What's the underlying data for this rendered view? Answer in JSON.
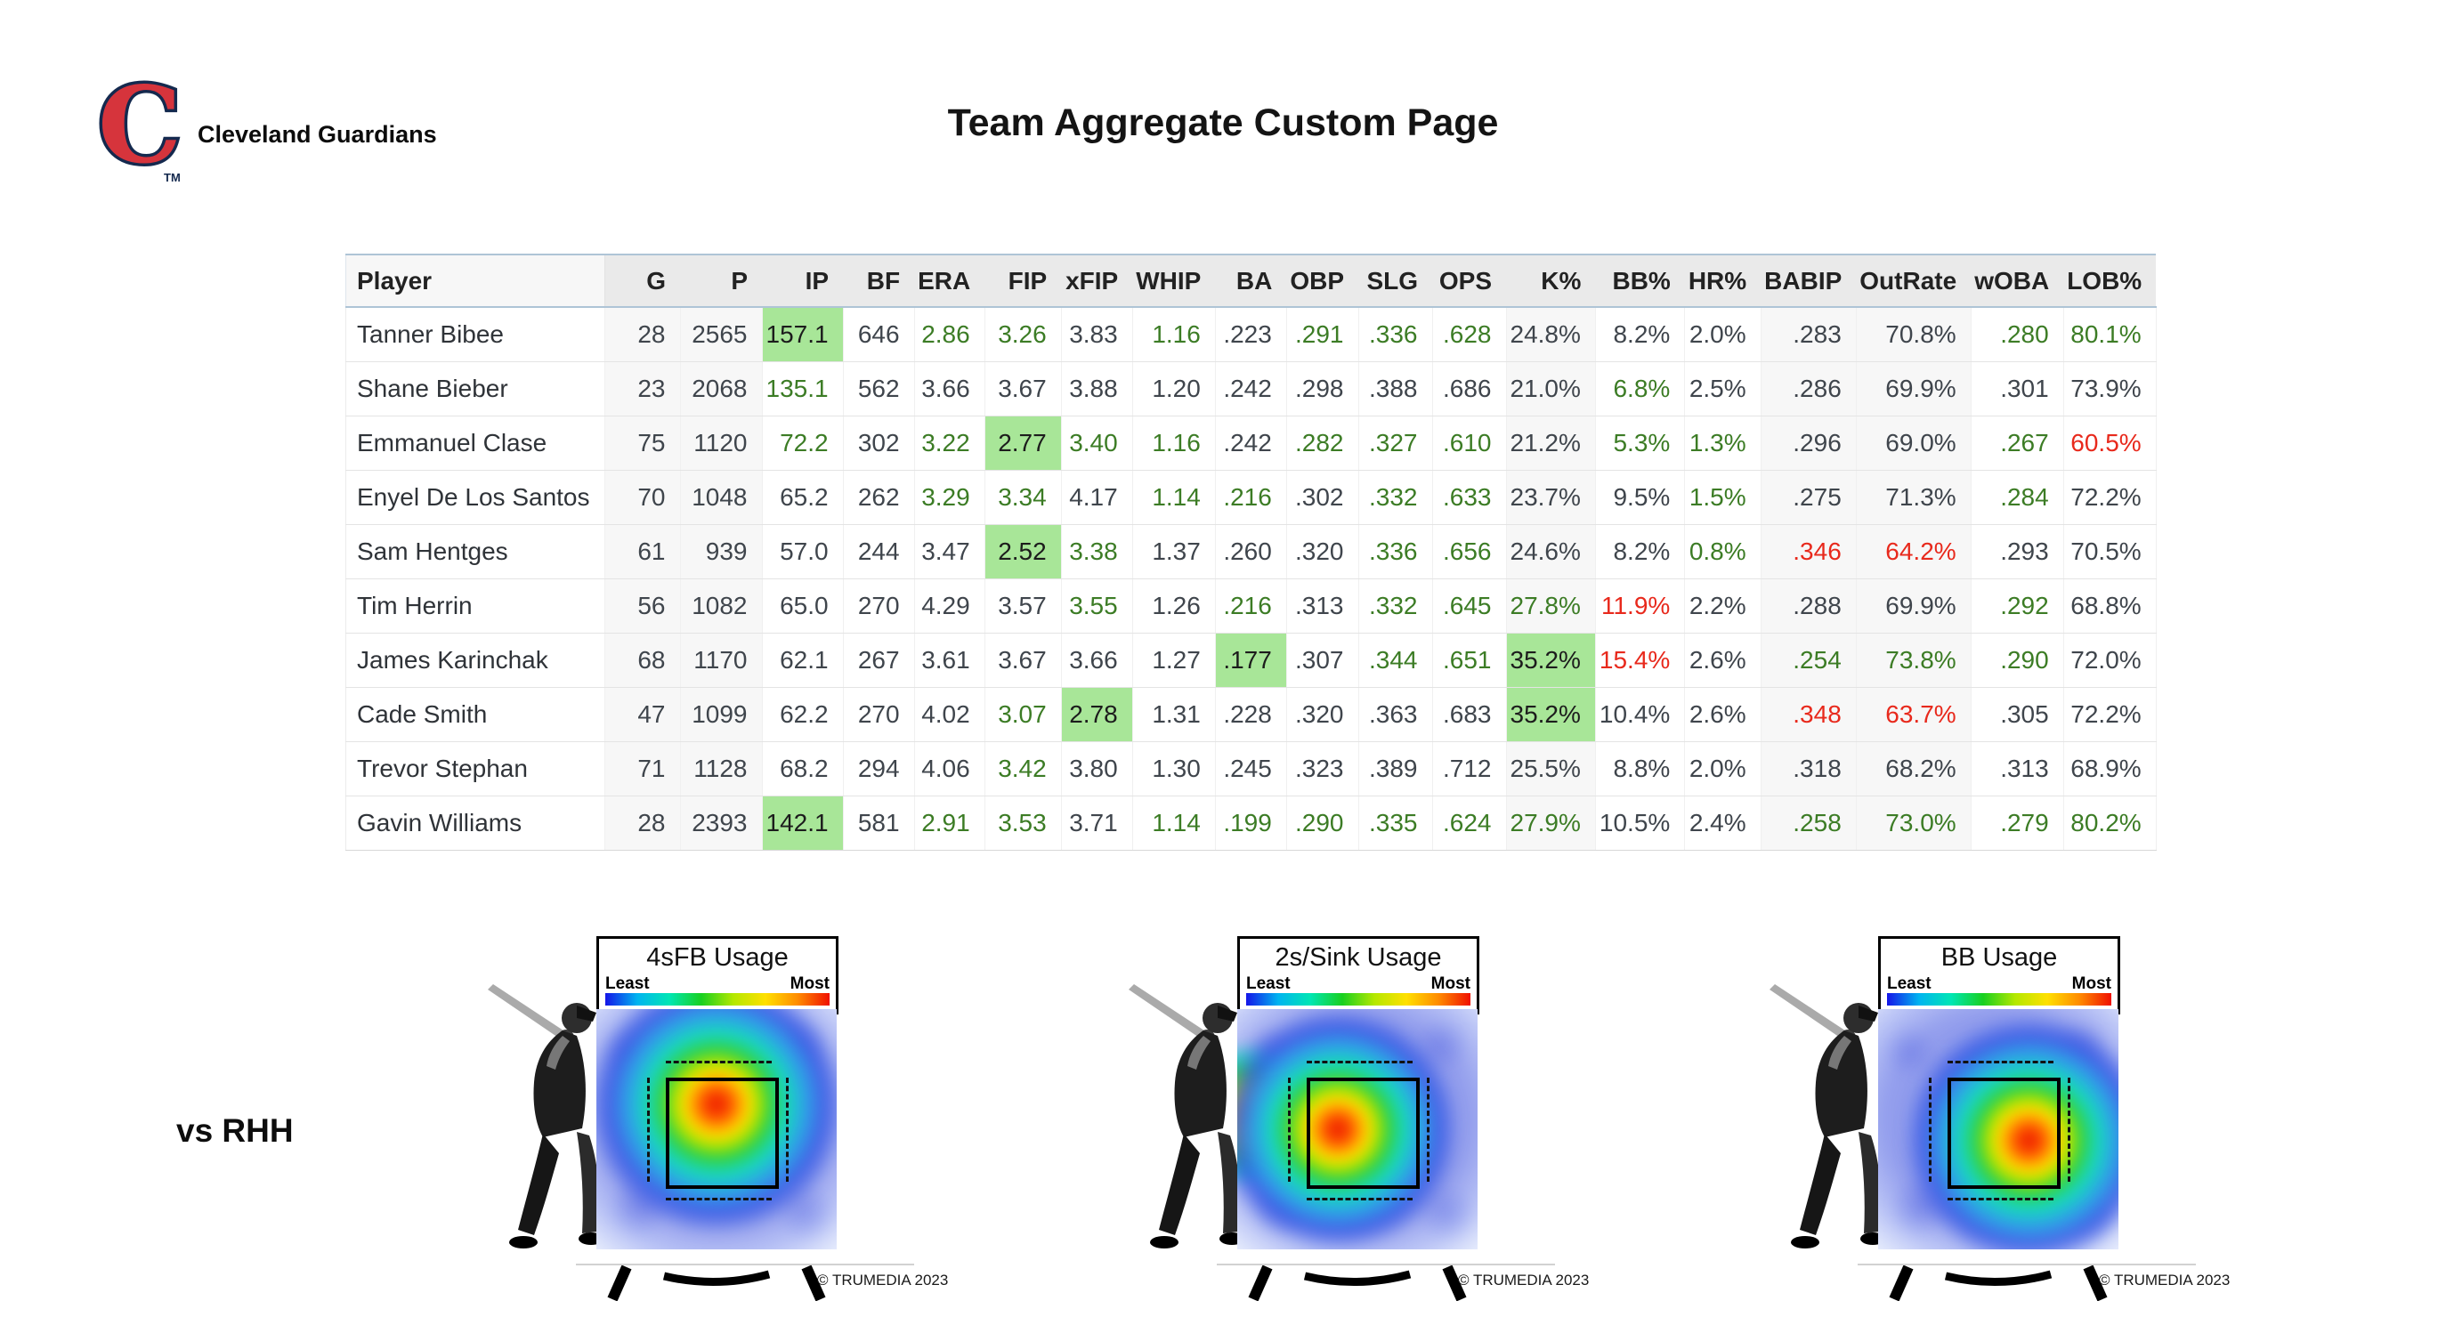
{
  "header": {
    "team_name": "Cleveland Guardians",
    "logo_letter": "C",
    "logo_tm": "TM",
    "page_title": "Team Aggregate Custom Page"
  },
  "colors": {
    "positive_text": "#3c7c25",
    "negative_text": "#e8291c",
    "highlight_bg": "#a8e698",
    "header_accent_line": "#aec4d6",
    "logo_red": "#d6343c",
    "logo_navy": "#14294e"
  },
  "table": {
    "columns": [
      "Player",
      "G",
      "P",
      "IP",
      "BF",
      "ERA",
      "FIP",
      "xFIP",
      "WHIP",
      "BA",
      "OBP",
      "SLG",
      "OPS",
      "K%",
      "BB%",
      "HR%",
      "BABIP",
      "OutRate",
      "wOBA",
      "LOB%"
    ],
    "rows": [
      {
        "player": "Tanner Bibee",
        "cells": [
          {
            "v": "28"
          },
          {
            "v": "2565"
          },
          {
            "v": "157.1",
            "c": "hl"
          },
          {
            "v": "646"
          },
          {
            "v": "2.86",
            "c": "g"
          },
          {
            "v": "3.26",
            "c": "g"
          },
          {
            "v": "3.83"
          },
          {
            "v": "1.16",
            "c": "g"
          },
          {
            "v": ".223"
          },
          {
            "v": ".291",
            "c": "g"
          },
          {
            "v": ".336",
            "c": "g"
          },
          {
            "v": ".628",
            "c": "g"
          },
          {
            "v": "24.8%"
          },
          {
            "v": "8.2%"
          },
          {
            "v": "2.0%"
          },
          {
            "v": ".283"
          },
          {
            "v": "70.8%"
          },
          {
            "v": ".280",
            "c": "g"
          },
          {
            "v": "80.1%",
            "c": "g"
          }
        ]
      },
      {
        "player": "Shane Bieber",
        "cells": [
          {
            "v": "23"
          },
          {
            "v": "2068"
          },
          {
            "v": "135.1",
            "c": "g"
          },
          {
            "v": "562"
          },
          {
            "v": "3.66"
          },
          {
            "v": "3.67"
          },
          {
            "v": "3.88"
          },
          {
            "v": "1.20"
          },
          {
            "v": ".242"
          },
          {
            "v": ".298"
          },
          {
            "v": ".388"
          },
          {
            "v": ".686"
          },
          {
            "v": "21.0%"
          },
          {
            "v": "6.8%",
            "c": "g"
          },
          {
            "v": "2.5%"
          },
          {
            "v": ".286"
          },
          {
            "v": "69.9%"
          },
          {
            "v": ".301"
          },
          {
            "v": "73.9%"
          }
        ]
      },
      {
        "player": "Emmanuel Clase",
        "cells": [
          {
            "v": "75"
          },
          {
            "v": "1120"
          },
          {
            "v": "72.2",
            "c": "g"
          },
          {
            "v": "302"
          },
          {
            "v": "3.22",
            "c": "g"
          },
          {
            "v": "2.77",
            "c": "hl"
          },
          {
            "v": "3.40",
            "c": "g"
          },
          {
            "v": "1.16",
            "c": "g"
          },
          {
            "v": ".242"
          },
          {
            "v": ".282",
            "c": "g"
          },
          {
            "v": ".327",
            "c": "g"
          },
          {
            "v": ".610",
            "c": "g"
          },
          {
            "v": "21.2%"
          },
          {
            "v": "5.3%",
            "c": "g"
          },
          {
            "v": "1.3%",
            "c": "g"
          },
          {
            "v": ".296"
          },
          {
            "v": "69.0%"
          },
          {
            "v": ".267",
            "c": "g"
          },
          {
            "v": "60.5%",
            "c": "r"
          }
        ]
      },
      {
        "player": "Enyel De Los Santos",
        "cells": [
          {
            "v": "70"
          },
          {
            "v": "1048"
          },
          {
            "v": "65.2"
          },
          {
            "v": "262"
          },
          {
            "v": "3.29",
            "c": "g"
          },
          {
            "v": "3.34",
            "c": "g"
          },
          {
            "v": "4.17"
          },
          {
            "v": "1.14",
            "c": "g"
          },
          {
            "v": ".216",
            "c": "g"
          },
          {
            "v": ".302"
          },
          {
            "v": ".332",
            "c": "g"
          },
          {
            "v": ".633",
            "c": "g"
          },
          {
            "v": "23.7%"
          },
          {
            "v": "9.5%"
          },
          {
            "v": "1.5%",
            "c": "g"
          },
          {
            "v": ".275"
          },
          {
            "v": "71.3%"
          },
          {
            "v": ".284",
            "c": "g"
          },
          {
            "v": "72.2%"
          }
        ]
      },
      {
        "player": "Sam Hentges",
        "cells": [
          {
            "v": "61"
          },
          {
            "v": "939"
          },
          {
            "v": "57.0"
          },
          {
            "v": "244"
          },
          {
            "v": "3.47"
          },
          {
            "v": "2.52",
            "c": "hl"
          },
          {
            "v": "3.38",
            "c": "g"
          },
          {
            "v": "1.37"
          },
          {
            "v": ".260"
          },
          {
            "v": ".320"
          },
          {
            "v": ".336",
            "c": "g"
          },
          {
            "v": ".656",
            "c": "g"
          },
          {
            "v": "24.6%"
          },
          {
            "v": "8.2%"
          },
          {
            "v": "0.8%",
            "c": "g"
          },
          {
            "v": ".346",
            "c": "r"
          },
          {
            "v": "64.2%",
            "c": "r"
          },
          {
            "v": ".293"
          },
          {
            "v": "70.5%"
          }
        ]
      },
      {
        "player": "Tim Herrin",
        "cells": [
          {
            "v": "56"
          },
          {
            "v": "1082"
          },
          {
            "v": "65.0"
          },
          {
            "v": "270"
          },
          {
            "v": "4.29"
          },
          {
            "v": "3.57"
          },
          {
            "v": "3.55",
            "c": "g"
          },
          {
            "v": "1.26"
          },
          {
            "v": ".216",
            "c": "g"
          },
          {
            "v": ".313"
          },
          {
            "v": ".332",
            "c": "g"
          },
          {
            "v": ".645",
            "c": "g"
          },
          {
            "v": "27.8%",
            "c": "g"
          },
          {
            "v": "11.9%",
            "c": "r"
          },
          {
            "v": "2.2%"
          },
          {
            "v": ".288"
          },
          {
            "v": "69.9%"
          },
          {
            "v": ".292",
            "c": "g"
          },
          {
            "v": "68.8%"
          }
        ]
      },
      {
        "player": "James Karinchak",
        "cells": [
          {
            "v": "68"
          },
          {
            "v": "1170"
          },
          {
            "v": "62.1"
          },
          {
            "v": "267"
          },
          {
            "v": "3.61"
          },
          {
            "v": "3.67"
          },
          {
            "v": "3.66"
          },
          {
            "v": "1.27"
          },
          {
            "v": ".177",
            "c": "hl"
          },
          {
            "v": ".307"
          },
          {
            "v": ".344",
            "c": "g"
          },
          {
            "v": ".651",
            "c": "g"
          },
          {
            "v": "35.2%",
            "c": "hl"
          },
          {
            "v": "15.4%",
            "c": "r"
          },
          {
            "v": "2.6%"
          },
          {
            "v": ".254",
            "c": "g"
          },
          {
            "v": "73.8%",
            "c": "g"
          },
          {
            "v": ".290",
            "c": "g"
          },
          {
            "v": "72.0%"
          }
        ]
      },
      {
        "player": "Cade Smith",
        "cells": [
          {
            "v": "47"
          },
          {
            "v": "1099"
          },
          {
            "v": "62.2"
          },
          {
            "v": "270"
          },
          {
            "v": "4.02"
          },
          {
            "v": "3.07",
            "c": "g"
          },
          {
            "v": "2.78",
            "c": "hl"
          },
          {
            "v": "1.31"
          },
          {
            "v": ".228"
          },
          {
            "v": ".320"
          },
          {
            "v": ".363"
          },
          {
            "v": ".683"
          },
          {
            "v": "35.2%",
            "c": "hl"
          },
          {
            "v": "10.4%"
          },
          {
            "v": "2.6%"
          },
          {
            "v": ".348",
            "c": "r"
          },
          {
            "v": "63.7%",
            "c": "r"
          },
          {
            "v": ".305"
          },
          {
            "v": "72.2%"
          }
        ]
      },
      {
        "player": "Trevor Stephan",
        "cells": [
          {
            "v": "71"
          },
          {
            "v": "1128"
          },
          {
            "v": "68.2"
          },
          {
            "v": "294"
          },
          {
            "v": "4.06"
          },
          {
            "v": "3.42",
            "c": "g"
          },
          {
            "v": "3.80"
          },
          {
            "v": "1.30"
          },
          {
            "v": ".245"
          },
          {
            "v": ".323"
          },
          {
            "v": ".389"
          },
          {
            "v": ".712"
          },
          {
            "v": "25.5%"
          },
          {
            "v": "8.8%"
          },
          {
            "v": "2.0%"
          },
          {
            "v": ".318"
          },
          {
            "v": "68.2%"
          },
          {
            "v": ".313"
          },
          {
            "v": "68.9%"
          }
        ]
      },
      {
        "player": "Gavin Williams",
        "cells": [
          {
            "v": "28"
          },
          {
            "v": "2393"
          },
          {
            "v": "142.1",
            "c": "hl"
          },
          {
            "v": "581"
          },
          {
            "v": "2.91",
            "c": "g"
          },
          {
            "v": "3.53",
            "c": "g"
          },
          {
            "v": "3.71"
          },
          {
            "v": "1.14",
            "c": "g"
          },
          {
            "v": ".199",
            "c": "g"
          },
          {
            "v": ".290",
            "c": "g"
          },
          {
            "v": ".335",
            "c": "g"
          },
          {
            "v": ".624",
            "c": "g"
          },
          {
            "v": "27.9%",
            "c": "g"
          },
          {
            "v": "10.5%"
          },
          {
            "v": "2.4%"
          },
          {
            "v": ".258",
            "c": "g"
          },
          {
            "v": "73.0%",
            "c": "g"
          },
          {
            "v": ".279",
            "c": "g"
          },
          {
            "v": "80.2%",
            "c": "g"
          }
        ]
      }
    ]
  },
  "heatmaps": {
    "vs_label": "vs RHH",
    "scale": {
      "least": "Least",
      "most": "Most",
      "colors": [
        "#1515e8",
        "#00b4f0",
        "#00e6b4",
        "#18d020",
        "#b4e800",
        "#ffe000",
        "#ff8c00",
        "#f01000"
      ]
    },
    "panels": [
      {
        "title": "4sFB Usage",
        "copyright": "© TRUMEDIA 2023",
        "hot_center": {
          "x": "50%",
          "y": "41%"
        },
        "hot_radius": "170px",
        "hot_region": "middle, upper half of strike zone"
      },
      {
        "title": "2s/Sink Usage",
        "copyright": "© TRUMEDIA 2023",
        "hot_center": {
          "x": "43%",
          "y": "50%"
        },
        "hot_radius": "160px",
        "side_blob": {
          "x": "11%",
          "y": "45%"
        },
        "hot_region": "middle-in, spilling inside off the plate"
      },
      {
        "title": "BB Usage",
        "copyright": "© TRUMEDIA 2023",
        "hot_center": {
          "x": "61%",
          "y": "54%"
        },
        "hot_radius": "165px",
        "hot_region": "low and away, lower-right of zone"
      }
    ]
  }
}
